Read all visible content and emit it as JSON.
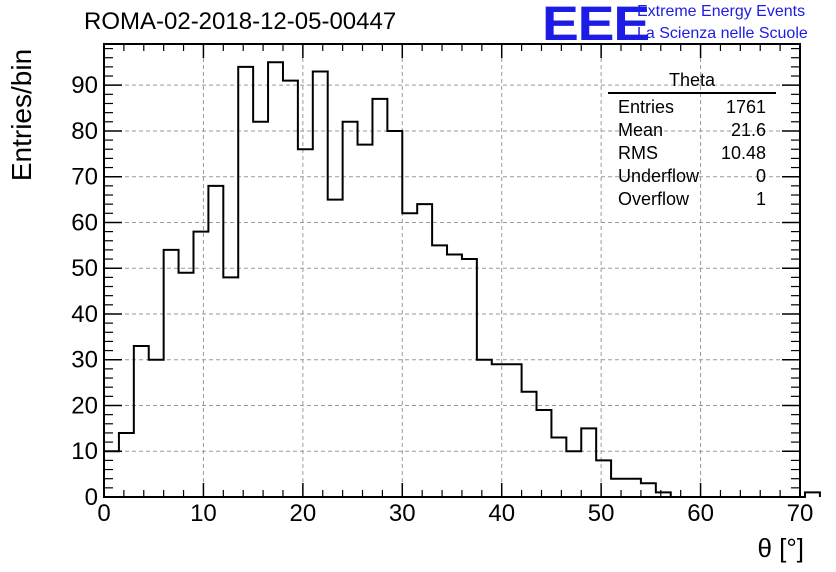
{
  "header": {
    "title": "ROMA-02-2018-12-05-00447",
    "logo_text": "EEE",
    "logo_line1": "Extreme Energy Events",
    "logo_line2": "La Scienza nelle Scuole"
  },
  "stats_box": {
    "title": "Theta",
    "rows": [
      {
        "label": "Entries",
        "value": "1761"
      },
      {
        "label": "Mean",
        "value": "21.6"
      },
      {
        "label": "RMS",
        "value": "10.48"
      },
      {
        "label": "Underflow",
        "value": "0"
      },
      {
        "label": "Overflow",
        "value": "1"
      }
    ]
  },
  "colors": {
    "line": "#000000",
    "grid": "#9a9a9a",
    "logo": "#1c1ce6"
  },
  "chart_data": {
    "type": "bar",
    "histogram": true,
    "title": "ROMA-02-2018-12-05-00447",
    "xlabel": "θ [°]",
    "ylabel": "Entries/bin",
    "xlim": [
      0,
      70
    ],
    "ylim": [
      0,
      99
    ],
    "grid": true,
    "bin_width": 1.5,
    "bin_edges_start": 0,
    "x_ticks": [
      "0",
      "10",
      "20",
      "30",
      "40",
      "50",
      "60",
      "70"
    ],
    "y_ticks": [
      "0",
      "10",
      "20",
      "30",
      "40",
      "50",
      "60",
      "70",
      "80",
      "90"
    ],
    "values": [
      10,
      14,
      33,
      30,
      54,
      49,
      58,
      68,
      48,
      94,
      82,
      95,
      91,
      76,
      93,
      65,
      82,
      77,
      87,
      80,
      62,
      64,
      55,
      53,
      52,
      30,
      29,
      29,
      23,
      19,
      13,
      10,
      15,
      8,
      4,
      4,
      3,
      1,
      0,
      0,
      0,
      0,
      0,
      0,
      0,
      0,
      0,
      1
    ]
  }
}
